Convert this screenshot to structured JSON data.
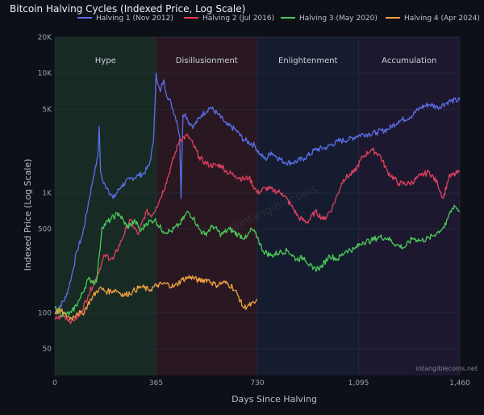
{
  "chart_data": {
    "type": "line",
    "title": "Bitcoin Halving Cycles (Indexed Price, Log Scale)",
    "xlabel": "Days Since Halving",
    "ylabel": "Indexed Price (Log Scale)",
    "yscale": "log",
    "xlim": [
      0,
      1460
    ],
    "ylim": [
      30,
      20000
    ],
    "x_ticks": [
      {
        "value": 0,
        "label": "0"
      },
      {
        "value": 365,
        "label": "365"
      },
      {
        "value": 730,
        "label": "730"
      },
      {
        "value": 1095,
        "label": "1,095"
      },
      {
        "value": 1460,
        "label": "1,460"
      }
    ],
    "y_ticks": [
      {
        "value": 50,
        "label": "50"
      },
      {
        "value": 100,
        "label": "100"
      },
      {
        "value": 500,
        "label": "500"
      },
      {
        "value": 1000,
        "label": "1K"
      },
      {
        "value": 5000,
        "label": "5K"
      },
      {
        "value": 10000,
        "label": "10K"
      },
      {
        "value": 20000,
        "label": "20K"
      }
    ],
    "grid": true,
    "legend_position": "top",
    "phases": [
      {
        "label": "Hype",
        "start": 0,
        "end": 365,
        "color": "#1c3a26"
      },
      {
        "label": "Disillusionment",
        "start": 365,
        "end": 730,
        "color": "#3a1a20"
      },
      {
        "label": "Enlightenment",
        "start": 730,
        "end": 1095,
        "color": "#15203a"
      },
      {
        "label": "Accumulation",
        "start": 1095,
        "end": 1460,
        "color": "#241a3a"
      }
    ],
    "series": [
      {
        "name": "Halving 1 (Nov 2012)",
        "color": "#5b6ee8",
        "x": [
          0,
          20,
          40,
          60,
          80,
          100,
          120,
          140,
          155,
          160,
          165,
          175,
          190,
          210,
          240,
          270,
          300,
          320,
          340,
          355,
          365,
          372,
          380,
          392,
          400,
          420,
          440,
          450,
          455,
          462,
          470,
          480,
          500,
          530,
          560,
          590,
          620,
          650,
          680,
          720,
          740,
          760,
          780,
          800,
          830,
          860,
          900,
          940,
          980,
          1020,
          1060,
          1090,
          1110,
          1130,
          1160,
          1200,
          1240,
          1280,
          1320,
          1350,
          1380,
          1420,
          1460
        ],
        "y": [
          100,
          115,
          135,
          200,
          330,
          450,
          800,
          1400,
          2000,
          3600,
          1500,
          1200,
          1100,
          900,
          1150,
          1300,
          1400,
          1450,
          1700,
          2600,
          10000,
          8000,
          7000,
          8800,
          7000,
          5500,
          4000,
          3000,
          900,
          4500,
          4600,
          4000,
          3600,
          4500,
          5200,
          4500,
          3700,
          3400,
          2800,
          2500,
          2100,
          1900,
          2200,
          2000,
          1800,
          1800,
          1950,
          2300,
          2400,
          2700,
          2800,
          3000,
          3100,
          3100,
          3200,
          3400,
          4000,
          4300,
          5200,
          5500,
          5200,
          5800,
          6000
        ]
      },
      {
        "name": "Halving 2 (Jul 2016)",
        "color": "#e0405f",
        "x": [
          0,
          30,
          60,
          90,
          120,
          150,
          180,
          210,
          240,
          270,
          300,
          330,
          350,
          365,
          380,
          400,
          420,
          450,
          480,
          500,
          520,
          540,
          560,
          580,
          600,
          620,
          650,
          680,
          700,
          730,
          760,
          790,
          820,
          850,
          880,
          910,
          940,
          970,
          1000,
          1040,
          1080,
          1110,
          1140,
          1170,
          1200,
          1240,
          1280,
          1320,
          1350,
          1380,
          1400,
          1420,
          1460
        ],
        "y": [
          88,
          95,
          85,
          95,
          140,
          200,
          300,
          280,
          400,
          600,
          450,
          700,
          650,
          760,
          900,
          1200,
          1700,
          2800,
          3000,
          2500,
          2000,
          1800,
          1700,
          1700,
          1700,
          1500,
          1400,
          1300,
          1350,
          1000,
          1100,
          1050,
          1000,
          800,
          620,
          570,
          700,
          600,
          750,
          1300,
          1500,
          2000,
          2300,
          2100,
          1500,
          1200,
          1200,
          1400,
          1500,
          1200,
          900,
          1350,
          1500
        ]
      },
      {
        "name": "Halving 3 (May 2020)",
        "color": "#4cc85a",
        "x": [
          0,
          30,
          60,
          90,
          120,
          150,
          160,
          170,
          200,
          230,
          260,
          290,
          310,
          330,
          360,
          390,
          420,
          450,
          480,
          500,
          520,
          540,
          570,
          600,
          630,
          660,
          690,
          710,
          730,
          750,
          780,
          810,
          840,
          870,
          900,
          930,
          960,
          990,
          1020,
          1050,
          1080,
          1110,
          1140,
          1170,
          1200,
          1230,
          1260,
          1290,
          1320,
          1350,
          1380,
          1410,
          1420,
          1440,
          1460
        ],
        "y": [
          110,
          95,
          100,
          130,
          190,
          180,
          300,
          520,
          600,
          680,
          520,
          580,
          480,
          560,
          600,
          480,
          480,
          550,
          700,
          620,
          500,
          450,
          530,
          450,
          500,
          450,
          420,
          500,
          430,
          330,
          300,
          320,
          330,
          280,
          290,
          230,
          240,
          300,
          280,
          330,
          340,
          390,
          400,
          430,
          420,
          370,
          350,
          420,
          400,
          420,
          470,
          540,
          650,
          790,
          700
        ]
      },
      {
        "name": "Halving 4 (Apr 2024)",
        "color": "#f0a040",
        "x": [
          0,
          20,
          40,
          60,
          80,
          100,
          130,
          160,
          190,
          220,
          250,
          280,
          310,
          340,
          370,
          400,
          430,
          460,
          490,
          520,
          550,
          580,
          610,
          640,
          660,
          680,
          700,
          720,
          730
        ],
        "y": [
          100,
          105,
          95,
          90,
          100,
          98,
          130,
          160,
          150,
          155,
          140,
          150,
          165,
          155,
          170,
          175,
          165,
          190,
          200,
          185,
          190,
          170,
          180,
          165,
          140,
          110,
          115,
          120,
          130
        ]
      }
    ]
  },
  "watermark": "intangiblecoins.net",
  "faint_watermark": "@intangiblecoins"
}
